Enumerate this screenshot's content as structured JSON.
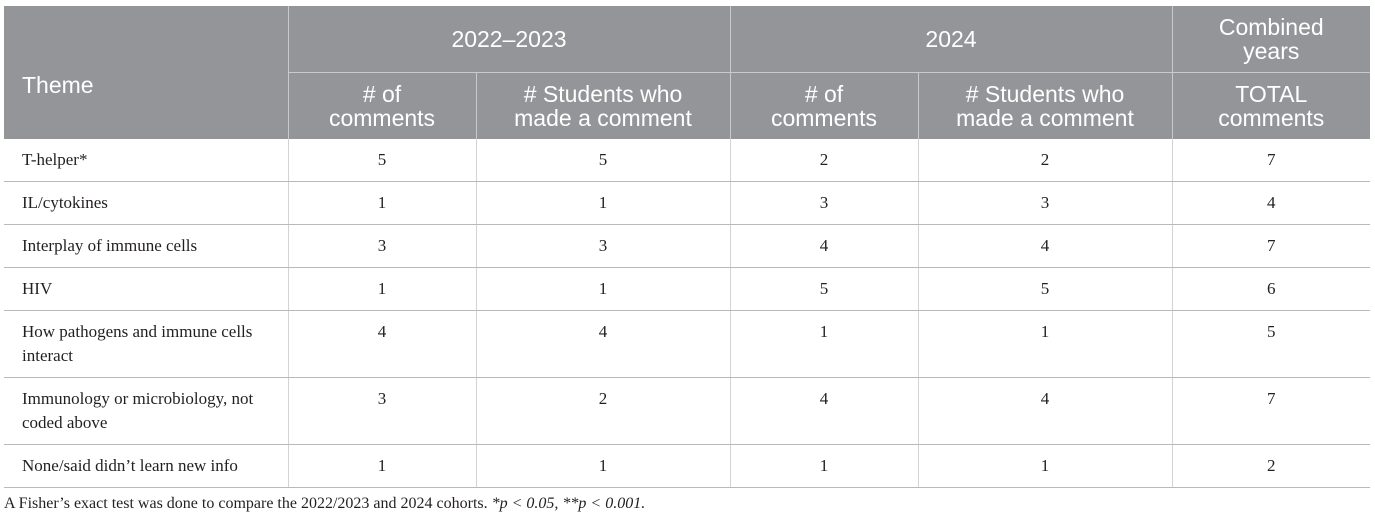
{
  "header": {
    "theme": "Theme",
    "groups": [
      "2022–2023",
      "2024",
      "Combined years"
    ],
    "subheaders": [
      "# of comments",
      "# Students who made a comment",
      "# of comments",
      "# Students who made a comment",
      "TOTAL comments"
    ]
  },
  "rows": [
    {
      "theme": "T-helper*",
      "c1": "5",
      "c2": "5",
      "c3": "2",
      "c4": "2",
      "total": "7"
    },
    {
      "theme": "IL/cytokines",
      "c1": "1",
      "c2": "1",
      "c3": "3",
      "c4": "3",
      "total": "4"
    },
    {
      "theme": "Interplay of immune cells",
      "c1": "3",
      "c2": "3",
      "c3": "4",
      "c4": "4",
      "total": "7"
    },
    {
      "theme": "HIV",
      "c1": "1",
      "c2": "1",
      "c3": "5",
      "c4": "5",
      "total": "6"
    },
    {
      "theme": "How pathogens and immune cells interact",
      "c1": "4",
      "c2": "4",
      "c3": "1",
      "c4": "1",
      "total": "5"
    },
    {
      "theme": "Immunology or microbiology, not coded above",
      "c1": "3",
      "c2": "2",
      "c3": "4",
      "c4": "4",
      "total": "7"
    },
    {
      "theme": "None/said didn’t learn new info",
      "c1": "1",
      "c2": "1",
      "c3": "1",
      "c4": "1",
      "total": "2"
    }
  ],
  "footnote": {
    "text": "A Fisher’s exact test was done to compare the 2022/2023 and 2024 cohorts.",
    "sig1": "*p < 0.05,",
    "sig2": "**p < 0.001."
  }
}
